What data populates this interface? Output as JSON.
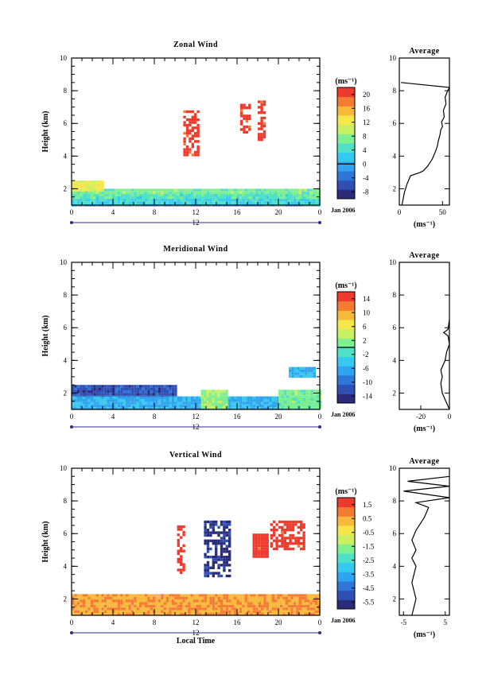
{
  "chart_data": [
    {
      "type": "heatmap",
      "title": "Zonal Wind",
      "ylabel": "Height (km)",
      "xlim": [
        0,
        24
      ],
      "ylim": [
        1,
        10
      ],
      "x_ticks": [
        "0",
        "4",
        "8",
        "12",
        "16",
        "20",
        "0"
      ],
      "y_ticks": [
        "2",
        "4",
        "6",
        "8",
        "10"
      ],
      "date_axis_label": "12",
      "date_label": "Jan 2006",
      "colorbar": {
        "unit": "(ms⁻¹)",
        "tick_labels": [
          "20",
          "16",
          "12",
          "8",
          "4",
          "0",
          "-4",
          "-8"
        ],
        "range": [
          -10,
          22
        ],
        "zero_line": 0,
        "colors": [
          "#2a2c7a",
          "#2f4fb5",
          "#2f76d9",
          "#2fa3ef",
          "#35c9ef",
          "#4fe0c8",
          "#7ff08f",
          "#c8f060",
          "#f5e64a",
          "#f8b83a",
          "#f57a32",
          "#ee3a2c"
        ]
      },
      "fields": [
        {
          "x": [
            0,
            24
          ],
          "y": [
            1.0,
            1.4
          ],
          "value": 3
        },
        {
          "x": [
            0,
            24
          ],
          "y": [
            1.4,
            1.7
          ],
          "value": 5
        },
        {
          "x": [
            0,
            24
          ],
          "y": [
            1.7,
            2.0
          ],
          "value": 7
        },
        {
          "x": [
            0,
            3
          ],
          "y": [
            2.0,
            2.5
          ],
          "value": 12
        },
        {
          "x": [
            10.8,
            12.2
          ],
          "y": [
            4.0,
            6.8
          ],
          "value": 21
        },
        {
          "x": [
            16.3,
            17.2
          ],
          "y": [
            5.5,
            7.2
          ],
          "value": 21
        },
        {
          "x": [
            18.0,
            18.6
          ],
          "y": [
            5.0,
            7.4
          ],
          "value": 21
        }
      ],
      "average_profile": {
        "title": "Average",
        "xlabel": "(ms⁻¹)",
        "xlim": [
          0,
          58
        ],
        "x_ticks": [
          "0",
          "50"
        ],
        "ylim": [
          1,
          10
        ],
        "y_ticks": [
          "2",
          "4",
          "6",
          "8",
          "10"
        ],
        "x": [
          3,
          6,
          9,
          13,
          24,
          28,
          33,
          38,
          42,
          44,
          45,
          47,
          48,
          50,
          49,
          52,
          51,
          54,
          53,
          56,
          58,
          2
        ],
        "y": [
          1.0,
          1.8,
          2.3,
          2.8,
          3.0,
          3.1,
          3.4,
          3.8,
          4.3,
          4.6,
          4.9,
          5.3,
          5.6,
          5.8,
          6.1,
          6.4,
          6.8,
          7.2,
          7.6,
          8.0,
          8.2,
          8.5
        ]
      }
    },
    {
      "type": "heatmap",
      "title": "Meridional Wind",
      "ylabel": "Height (km)",
      "xlim": [
        0,
        24
      ],
      "ylim": [
        1,
        10
      ],
      "x_ticks": [
        "0",
        "4",
        "8",
        "12",
        "16",
        "20",
        "0"
      ],
      "y_ticks": [
        "2",
        "4",
        "6",
        "8",
        "10"
      ],
      "date_axis_label": "12",
      "date_label": "Jan 2006",
      "colorbar": {
        "unit": "(ms⁻¹)",
        "tick_labels": [
          "14",
          "10",
          "6",
          "2",
          "-2",
          "-6",
          "-10",
          "-14"
        ],
        "range": [
          -16,
          16
        ],
        "zero_line": 0,
        "colors": [
          "#2a2c7a",
          "#2f4fb5",
          "#2f76d9",
          "#2fa3ef",
          "#35c9ef",
          "#4fe0c8",
          "#7ff08f",
          "#c8f060",
          "#f5e64a",
          "#f8b83a",
          "#f57a32",
          "#ee3a2c"
        ]
      },
      "fields": [
        {
          "x": [
            0,
            10
          ],
          "y": [
            1.8,
            2.5
          ],
          "value": -12
        },
        {
          "x": [
            0,
            24
          ],
          "y": [
            1.0,
            1.8
          ],
          "value": -6
        },
        {
          "x": [
            12.5,
            15
          ],
          "y": [
            1.2,
            2.2
          ],
          "value": 2
        },
        {
          "x": [
            20,
            24
          ],
          "y": [
            1.2,
            2.2
          ],
          "value": 1
        },
        {
          "x": [
            21,
            23.5
          ],
          "y": [
            3.0,
            3.6
          ],
          "value": -6
        }
      ],
      "average_profile": {
        "title": "Average",
        "xlabel": "(ms⁻¹)",
        "xlim": [
          -35,
          0
        ],
        "x_ticks": [
          "-20",
          "0"
        ],
        "ylim": [
          1,
          10
        ],
        "y_ticks": [
          "2",
          "4",
          "6",
          "8",
          "10"
        ],
        "x": [
          0,
          -3,
          -5,
          -6,
          -5,
          -6,
          -4,
          -3,
          -2,
          0,
          -1,
          -4,
          -1,
          0
        ],
        "y": [
          1.0,
          1.6,
          2.0,
          2.6,
          3.0,
          3.4,
          3.8,
          4.0,
          4.5,
          5.0,
          5.5,
          5.7,
          5.9,
          6.5
        ]
      }
    },
    {
      "type": "heatmap",
      "title": "Vertical Wind",
      "ylabel": "Height (km)",
      "xlabel": "Local Time",
      "xlim": [
        0,
        24
      ],
      "ylim": [
        1,
        10
      ],
      "x_ticks": [
        "0",
        "4",
        "8",
        "12",
        "16",
        "20",
        "0"
      ],
      "y_ticks": [
        "2",
        "4",
        "6",
        "8",
        "10"
      ],
      "date_axis_label": "12",
      "date_label": "Jan 2006",
      "colorbar": {
        "unit": "(ms⁻¹)",
        "tick_labels": [
          "1.5",
          "0.5",
          "-0.5",
          "-1.5",
          "-2.5",
          "-3.5",
          "-4.5",
          "-5.5"
        ],
        "range": [
          -6,
          2
        ],
        "colors": [
          "#2a2c7a",
          "#2f4fb5",
          "#2f76d9",
          "#2fa3ef",
          "#35c9ef",
          "#4fe0c8",
          "#7ff08f",
          "#c8f060",
          "#f5e64a",
          "#f8b83a",
          "#f57a32",
          "#ee3a2c"
        ]
      },
      "fields": [
        {
          "x": [
            0,
            24
          ],
          "y": [
            1.0,
            2.3
          ],
          "value": 0.6
        },
        {
          "x": [
            12.8,
            15.4
          ],
          "y": [
            3.4,
            6.8
          ],
          "value": -5.5
        },
        {
          "x": [
            19.2,
            22.5
          ],
          "y": [
            5.0,
            6.8
          ],
          "value": 1.8
        },
        {
          "x": [
            10.2,
            10.8
          ],
          "y": [
            3.6,
            6.5
          ],
          "value": 1.8
        },
        {
          "x": [
            17.5,
            19.0
          ],
          "y": [
            4.6,
            6.0
          ],
          "value": 1.8
        }
      ],
      "average_profile": {
        "title": "Average",
        "xlabel": "(ms⁻¹)",
        "xlim": [
          -6,
          6
        ],
        "x_ticks": [
          "-5",
          "5"
        ],
        "ylim": [
          1,
          10
        ],
        "y_ticks": [
          "2",
          "4",
          "6",
          "8",
          "10"
        ],
        "x": [
          -3,
          -2,
          -3,
          -2,
          -3,
          -2,
          -3,
          -2,
          -1,
          0,
          1,
          -2,
          6,
          -5,
          6,
          -4,
          6
        ],
        "y": [
          1.0,
          2.0,
          3.0,
          4.0,
          4.5,
          5.0,
          5.6,
          6.2,
          6.6,
          7.0,
          7.6,
          7.9,
          8.2,
          8.6,
          8.9,
          9.2,
          9.5
        ]
      }
    }
  ]
}
